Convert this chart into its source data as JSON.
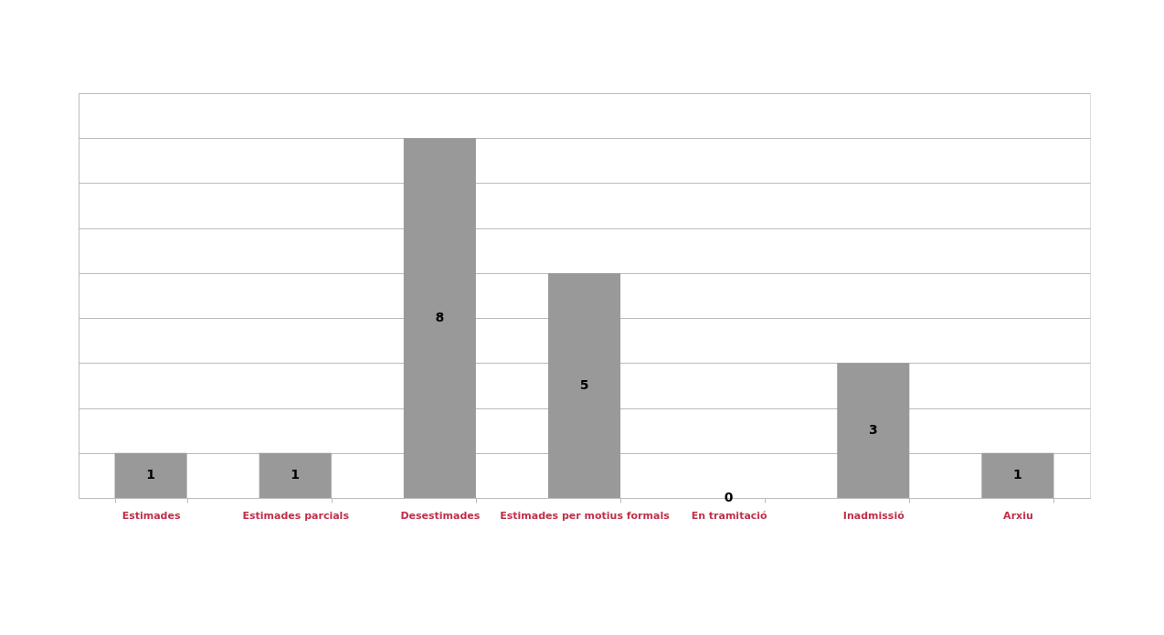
{
  "chart_data": {
    "type": "bar",
    "categories": [
      "Estimades",
      "Estimades parcials",
      "Desestimades",
      "Estimades per motius formals",
      "En tramitació",
      "Inadmissió",
      "Arxiu"
    ],
    "values": [
      1,
      1,
      8,
      5,
      0,
      3,
      1
    ],
    "color": "#999999",
    "ylim": [
      0,
      9
    ],
    "yticks": [
      {
        "value": 0,
        "label": null
      },
      {
        "value": 1,
        "label": null
      },
      {
        "value": 2,
        "label": null
      },
      {
        "value": 3,
        "label": null
      },
      {
        "value": 4,
        "label": null
      },
      {
        "value": 5,
        "label": null
      },
      {
        "value": 6,
        "label": null
      },
      {
        "value": 7,
        "label": null
      },
      {
        "value": 8,
        "label": null
      },
      {
        "value": 9,
        "label": null
      }
    ],
    "grid": "y",
    "tick_labels": "x",
    "data_labels": true
  }
}
